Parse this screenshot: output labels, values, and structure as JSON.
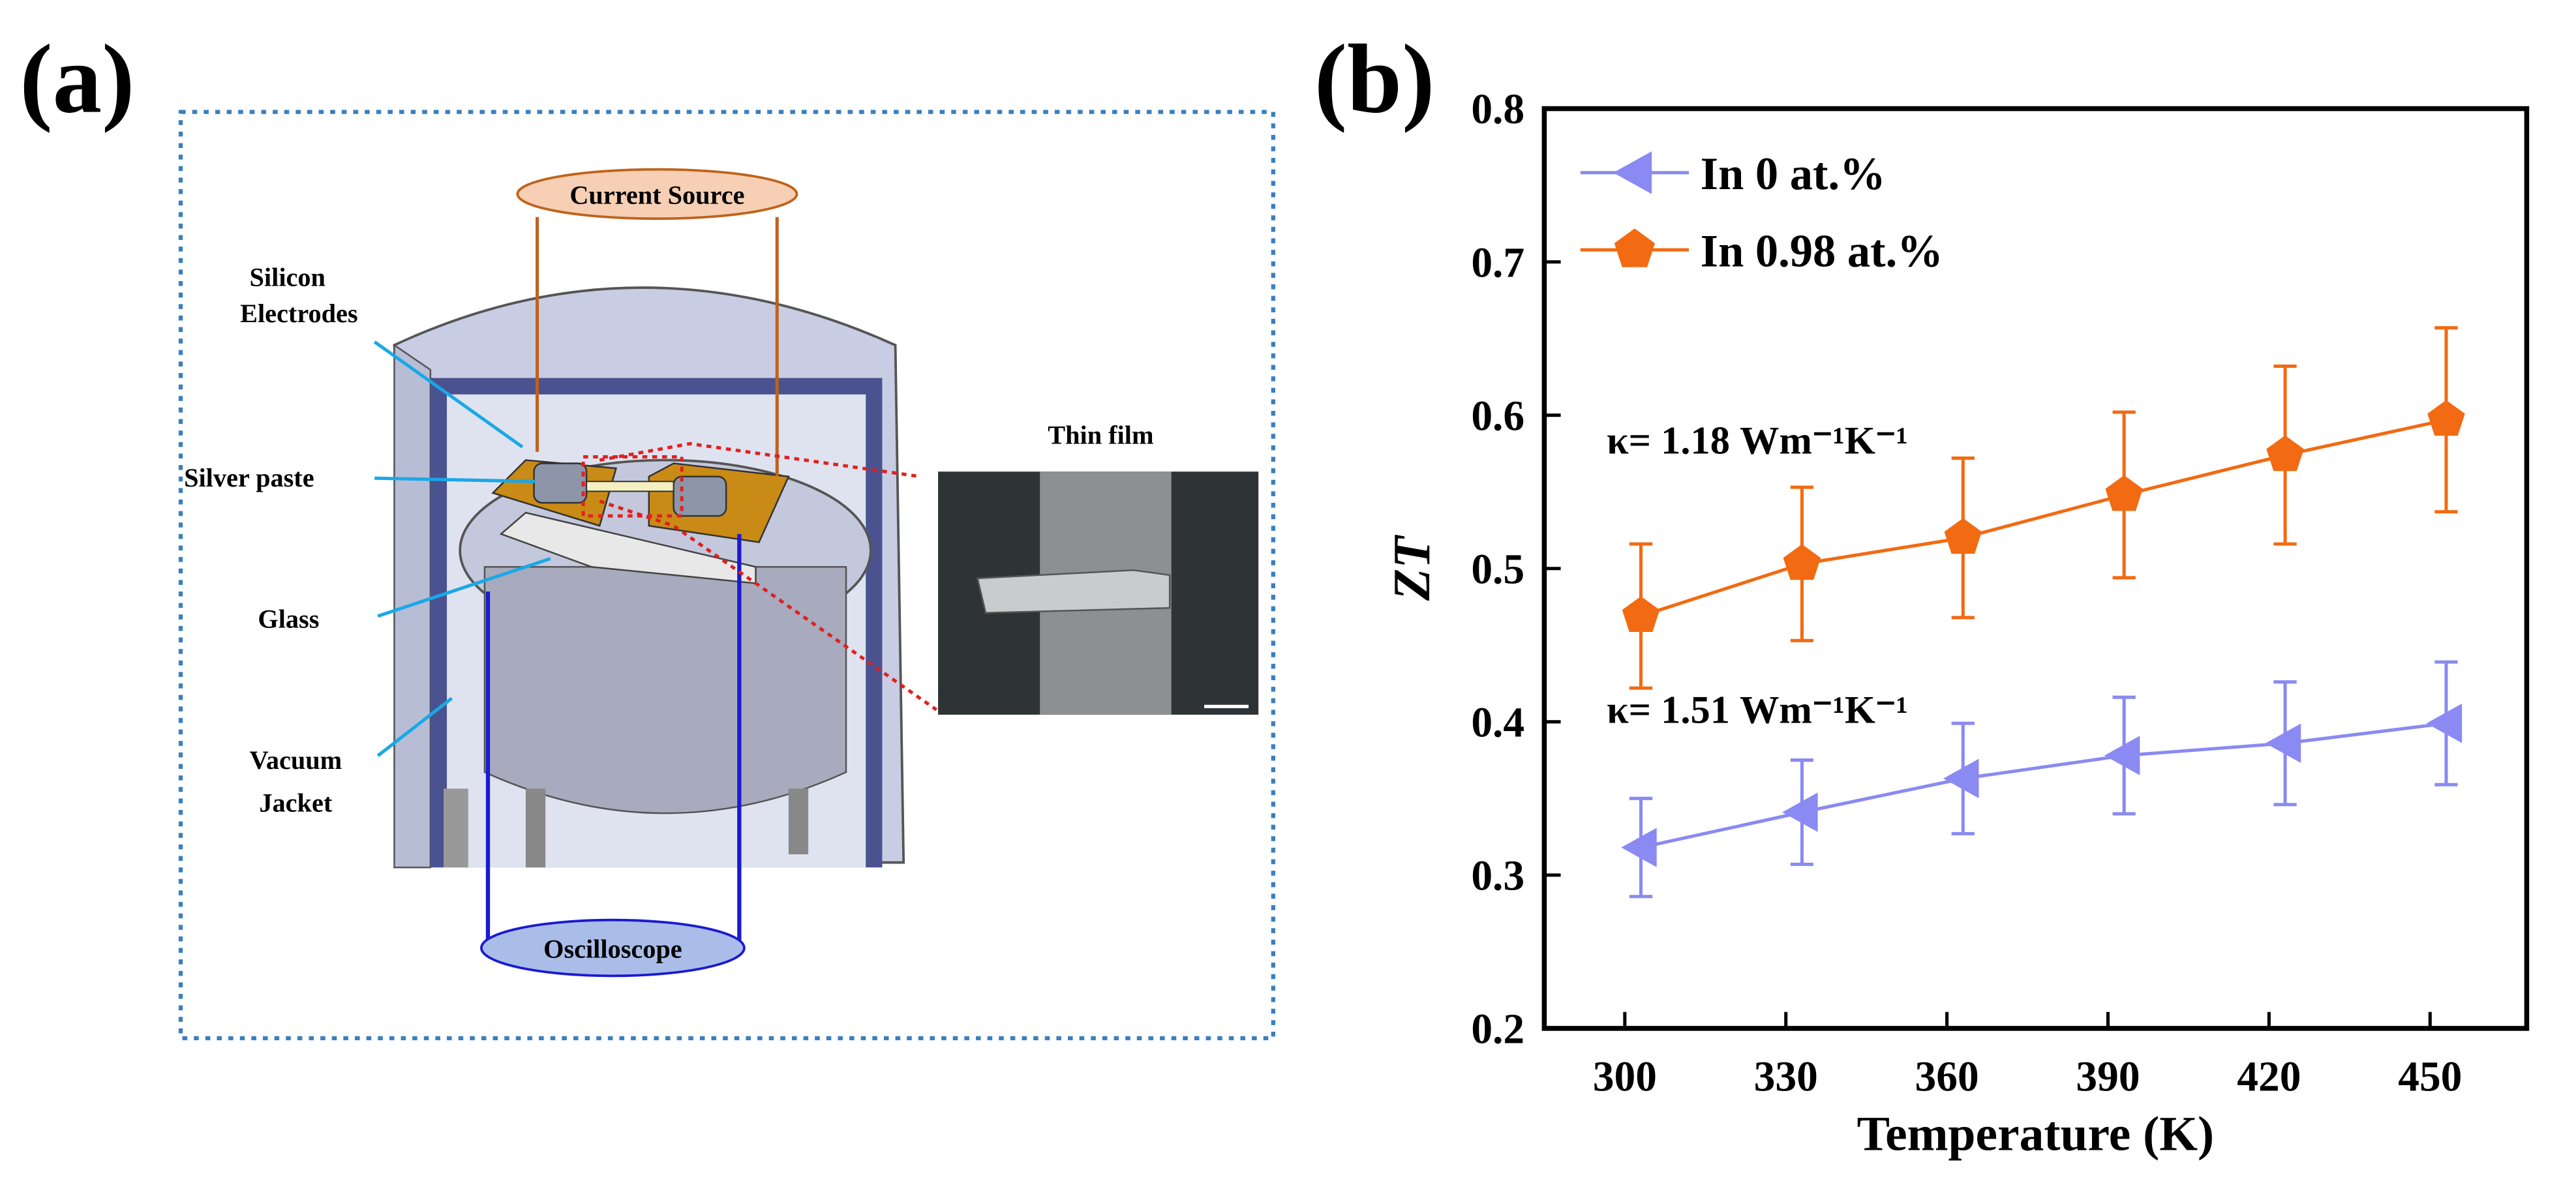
{
  "panel_labels": [
    "(a)",
    "(b)"
  ],
  "diagram": {
    "current_source": "Current Source",
    "silicon_electrodes": [
      "Silicon",
      "Electrodes"
    ],
    "silver_paste": "Silver paste",
    "glass": "Glass",
    "vacuum_jacket": [
      "Vacuum",
      "Jacket"
    ],
    "thin_film": "Thin film",
    "oscilloscope": "Oscilloscope"
  },
  "chart_data": {
    "type": "line",
    "x_label": "Temperature (K)",
    "y_label": "ZT",
    "x": [
      303,
      333,
      363,
      393,
      423,
      453
    ],
    "series": [
      {
        "name": "In 0 at.%",
        "color": "#8a8af2",
        "marker": "triangle-left",
        "values": [
          0.318,
          0.341,
          0.363,
          0.378,
          0.386,
          0.399
        ],
        "errors": [
          0.032,
          0.034,
          0.036,
          0.038,
          0.04,
          0.04
        ]
      },
      {
        "name": "In 0.98 at.%",
        "color": "#f26a12",
        "marker": "pentagon",
        "values": [
          0.469,
          0.503,
          0.52,
          0.548,
          0.574,
          0.597
        ],
        "errors": [
          0.047,
          0.05,
          0.052,
          0.054,
          0.058,
          0.06
        ]
      }
    ],
    "annotations": [
      "κ= 1.18 Wm⁻¹K⁻¹",
      "κ= 1.51 Wm⁻¹K⁻¹"
    ],
    "xlim": [
      285,
      468
    ],
    "xticks": [
      300,
      330,
      360,
      390,
      420,
      450
    ],
    "ylim": [
      0.2,
      0.8
    ],
    "yticks": [
      0.2,
      0.3,
      0.4,
      0.5,
      0.6,
      0.7,
      0.8
    ],
    "legend": "upper-left",
    "grid": false
  }
}
